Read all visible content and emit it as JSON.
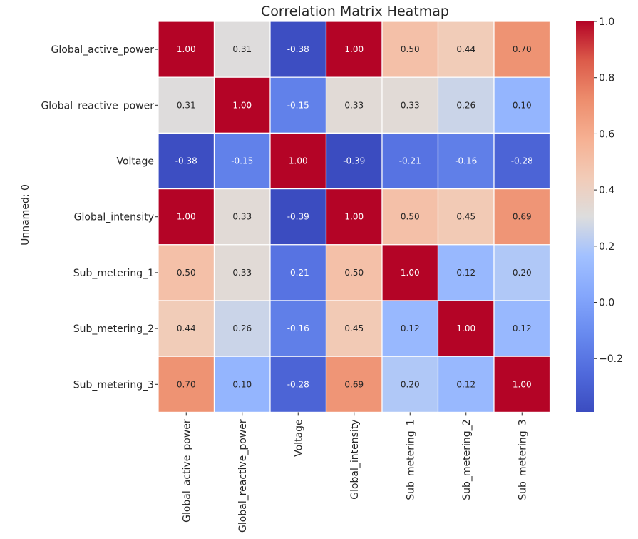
{
  "chart_data": {
    "type": "heatmap",
    "title": "Correlation Matrix Heatmap",
    "ylabel": "Unnamed: 0",
    "xlabel": "",
    "x_categories": [
      "Global_active_power",
      "Global_reactive_power",
      "Voltage",
      "Global_intensity",
      "Sub_metering_1",
      "Sub_metering_2",
      "Sub_metering_3"
    ],
    "y_categories": [
      "Global_active_power",
      "Global_reactive_power",
      "Voltage",
      "Global_intensity",
      "Sub_metering_1",
      "Sub_metering_2",
      "Sub_metering_3"
    ],
    "values": [
      [
        1.0,
        0.31,
        -0.38,
        1.0,
        0.5,
        0.44,
        0.7
      ],
      [
        0.31,
        1.0,
        -0.15,
        0.33,
        0.33,
        0.26,
        0.1
      ],
      [
        -0.38,
        -0.15,
        1.0,
        -0.39,
        -0.21,
        -0.16,
        -0.28
      ],
      [
        1.0,
        0.33,
        -0.39,
        1.0,
        0.5,
        0.45,
        0.69
      ],
      [
        0.5,
        0.33,
        -0.21,
        0.5,
        1.0,
        0.12,
        0.2
      ],
      [
        0.44,
        0.26,
        -0.16,
        0.45,
        0.12,
        1.0,
        0.12
      ],
      [
        0.7,
        0.1,
        -0.28,
        0.69,
        0.2,
        0.12,
        1.0
      ]
    ],
    "value_format": "0.00",
    "colormap": "coolwarm",
    "colorbar": {
      "range": [
        -0.39,
        1.0
      ],
      "ticks": [
        1.0,
        0.8,
        0.6,
        0.4,
        0.2,
        0.0,
        -0.2
      ],
      "tick_labels": [
        "1.0",
        "0.8",
        "0.6",
        "0.4",
        "0.2",
        "0.0",
        "−0.2"
      ],
      "placement": "right"
    },
    "grid": "white cell borders"
  }
}
